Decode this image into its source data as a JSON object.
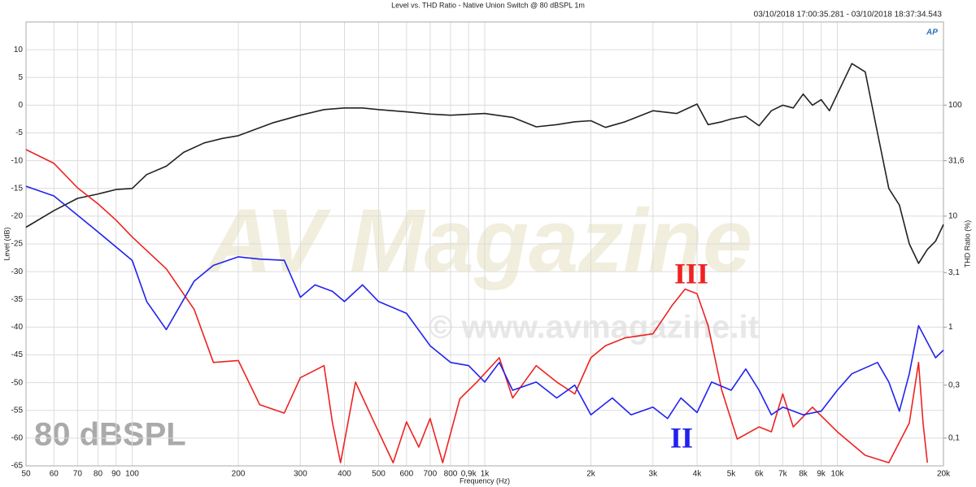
{
  "chart_data": {
    "type": "line",
    "title": "Level vs. THD Ratio - Native Union Switch @ 80 dBSPL 1m",
    "subtitle": "03/10/2018 17:00:35.281 - 03/10/2018 18:37:34.543",
    "logo": "AP",
    "watermark": "AV Magazine",
    "watermark_url": "© www.avmagazine.it",
    "annotation": "80 dBSPL",
    "x_label": "Frequency (Hz)",
    "y_label": "Level (dB)",
    "y2_label": "THD Ratio (%)",
    "xlog": true,
    "y2log": true,
    "grid": true,
    "xlim": [
      50,
      20000
    ],
    "ylim": [
      -65,
      15
    ],
    "y2lim": [
      0.0562,
      562
    ],
    "xticks": [
      50,
      60,
      70,
      80,
      90,
      100,
      200,
      300,
      400,
      500,
      600,
      700,
      800,
      {
        "value": 900,
        "label": "0,9k"
      },
      {
        "value": 1000,
        "label": "1k"
      },
      {
        "value": 2000,
        "label": "2k"
      },
      {
        "value": 3000,
        "label": "3k"
      },
      {
        "value": 4000,
        "label": "4k"
      },
      {
        "value": 5000,
        "label": "5k"
      },
      {
        "value": 6000,
        "label": "6k"
      },
      {
        "value": 7000,
        "label": "7k"
      },
      {
        "value": 8000,
        "label": "8k"
      },
      {
        "value": 9000,
        "label": "9k"
      },
      {
        "value": 10000,
        "label": "10k"
      },
      {
        "value": 20000,
        "label": "20k"
      }
    ],
    "yticks": [
      10,
      5,
      0,
      -5,
      -10,
      -15,
      -20,
      -25,
      -30,
      -35,
      -40,
      -45,
      -50,
      -55,
      -60,
      -65
    ],
    "y2ticks": [
      100,
      {
        "value": 31.6,
        "label": "31,6"
      },
      10,
      {
        "value": 3.1,
        "label": "3,1"
      },
      1,
      {
        "value": 0.3,
        "label": "0,3"
      },
      {
        "value": 0.1,
        "label": "0,1"
      }
    ],
    "series": [
      {
        "color": "#222222",
        "x": [
          50,
          60,
          70,
          80,
          90,
          100,
          110,
          125,
          140,
          160,
          180,
          200,
          250,
          300,
          350,
          400,
          450,
          500,
          600,
          700,
          800,
          1000,
          1200,
          1400,
          1600,
          1800,
          2000,
          2200,
          2500,
          3000,
          3500,
          4000,
          4300,
          4700,
          5000,
          5500,
          6000,
          6500,
          7000,
          7500,
          8000,
          8500,
          9000,
          9500,
          10000,
          11000,
          12000,
          13000,
          14000,
          15000,
          16000,
          17000,
          18000,
          19000,
          20000
        ],
        "values": [
          -22,
          -19,
          -16.8,
          -16,
          -15.2,
          -15,
          -12.5,
          -11,
          -8.5,
          -6.8,
          -6,
          -5.5,
          -3.2,
          -1.8,
          -0.8,
          -0.5,
          -0.5,
          -0.8,
          -1.2,
          -1.6,
          -1.8,
          -1.5,
          -2.2,
          -3.9,
          -3.5,
          -3,
          -2.8,
          -4,
          -3,
          -1,
          -1.5,
          0.2,
          -3.5,
          -3,
          -2.5,
          -2,
          -3.7,
          -1,
          0,
          -0.5,
          2,
          0,
          1,
          -1,
          2,
          7.5,
          6,
          -5,
          -15,
          -18,
          -25,
          -28.5,
          -26,
          -24.5,
          -21.5
        ]
      },
      {
        "name": "III",
        "color": "#ee2222",
        "axis": "y2",
        "x": [
          50,
          60,
          70,
          80,
          90,
          100,
          125,
          150,
          170,
          200,
          230,
          270,
          300,
          350,
          370,
          390,
          430,
          480,
          550,
          600,
          650,
          700,
          760,
          850,
          950,
          1100,
          1200,
          1400,
          1600,
          1800,
          2000,
          2200,
          2500,
          3000,
          3400,
          3700,
          4000,
          4300,
          4700,
          5200,
          6000,
          6500,
          7000,
          7500,
          8500,
          10000,
          12000,
          14000,
          16000,
          17000,
          17500,
          18000
        ],
        "values": [
          39.8,
          29.9,
          18,
          12.9,
          9.2,
          6.5,
          3.35,
          1.44,
          0.48,
          0.5,
          0.2,
          0.168,
          0.35,
          0.45,
          0.137,
          0.06,
          0.32,
          0.15,
          0.06,
          0.14,
          0.083,
          0.15,
          0.06,
          0.226,
          0.32,
          0.53,
          0.23,
          0.45,
          0.32,
          0.25,
          0.53,
          0.68,
          0.8,
          0.87,
          1.57,
          2.2,
          2,
          1.03,
          0.27,
          0.098,
          0.126,
          0.114,
          0.25,
          0.126,
          0.19,
          0.114,
          0.07,
          0.06,
          0.137,
          0.48,
          0.137,
          0.06
        ]
      },
      {
        "name": "II",
        "color": "#2222ee",
        "axis": "y2",
        "x": [
          50,
          60,
          80,
          100,
          110,
          125,
          150,
          170,
          200,
          230,
          270,
          300,
          330,
          370,
          400,
          450,
          500,
          600,
          700,
          800,
          900,
          1000,
          1100,
          1200,
          1400,
          1600,
          1800,
          2000,
          2300,
          2600,
          3000,
          3300,
          3600,
          4000,
          4400,
          5000,
          5500,
          6000,
          6500,
          7000,
          8000,
          9000,
          10000,
          11000,
          13000,
          14000,
          15000,
          16000,
          17000,
          18000,
          19000,
          20000
        ],
        "values": [
          18.6,
          15.2,
          7.2,
          4,
          1.7,
          0.95,
          2.6,
          3.6,
          4.3,
          4.1,
          4,
          1.86,
          2.4,
          2.1,
          1.7,
          2.4,
          1.7,
          1.33,
          0.68,
          0.48,
          0.45,
          0.32,
          0.48,
          0.27,
          0.32,
          0.23,
          0.3,
          0.162,
          0.23,
          0.162,
          0.19,
          0.15,
          0.23,
          0.17,
          0.32,
          0.27,
          0.42,
          0.27,
          0.162,
          0.19,
          0.162,
          0.175,
          0.27,
          0.38,
          0.48,
          0.32,
          0.175,
          0.38,
          1.03,
          0.73,
          0.53,
          0.62
        ]
      }
    ]
  }
}
